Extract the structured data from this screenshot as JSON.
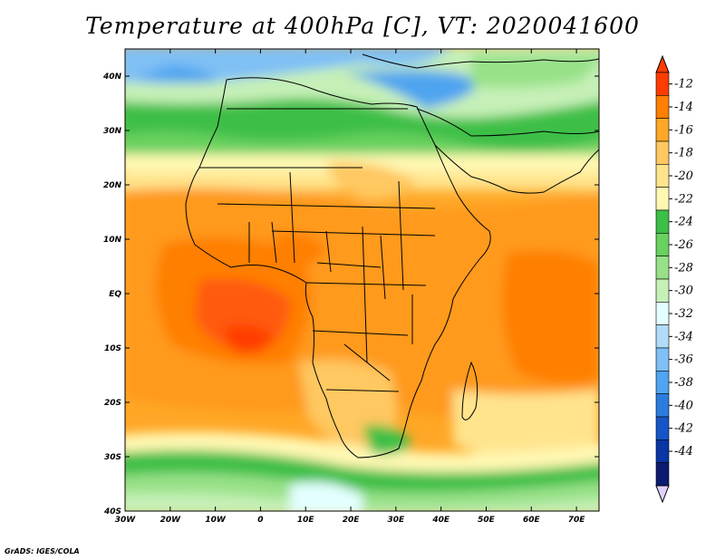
{
  "title": "Temperature at 400hPa [C], VT: 2020041600",
  "footer": "GrADS: IGES/COLA",
  "map": {
    "variable": "Temperature at 400hPa",
    "units": "C",
    "valid_time": "2020041600",
    "lon_range": [
      -30,
      75
    ],
    "lat_range": [
      -40,
      45
    ],
    "lat_labels": [
      "40N",
      "30N",
      "20N",
      "10N",
      "EQ",
      "10S",
      "20S",
      "30S",
      "40S"
    ],
    "lon_labels": [
      "30W",
      "20W",
      "10W",
      "0",
      "10E",
      "20E",
      "30E",
      "40E",
      "50E",
      "60E",
      "70E"
    ]
  },
  "colorbar": {
    "labels": [
      "-12",
      "-14",
      "-16",
      "-18",
      "-20",
      "-22",
      "-24",
      "-26",
      "-28",
      "-30",
      "-32",
      "-34",
      "-36",
      "-38",
      "-40",
      "-42",
      "-44"
    ],
    "colors": [
      "#ff3c00",
      "#ff7f00",
      "#ffa726",
      "#ffc860",
      "#ffe48d",
      "#fff8b3",
      "#3cbf46",
      "#69d15e",
      "#98e188",
      "#c6f0b7",
      "#e3ffff",
      "#b0dcfa",
      "#7fc0f5",
      "#50a4f0",
      "#2c7ce0",
      "#1655c8",
      "#0a35a6",
      "#0a1b70"
    ],
    "top_arrow_color": "#ff3c00",
    "bottom_arrow_color": "#e0d0ff"
  }
}
